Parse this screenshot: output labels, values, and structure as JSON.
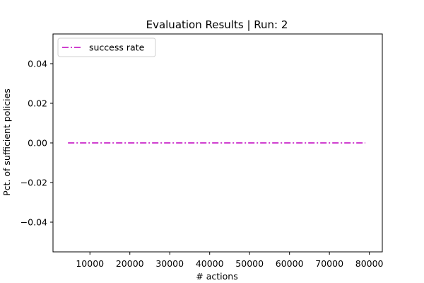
{
  "chart_data": {
    "type": "line",
    "title": "Evaluation Results | Run: 2",
    "xlabel": "# actions",
    "ylabel": "Pct. of sufficient policies",
    "xlim": [
      750,
      83250
    ],
    "ylim": [
      -0.055,
      0.055
    ],
    "xticks": [
      10000,
      20000,
      30000,
      40000,
      50000,
      60000,
      70000,
      80000
    ],
    "xtick_labels": [
      "10000",
      "20000",
      "30000",
      "40000",
      "50000",
      "60000",
      "70000",
      "80000"
    ],
    "yticks": [
      -0.04,
      -0.02,
      0.0,
      0.02,
      0.04
    ],
    "ytick_labels": [
      "−0.04",
      "−0.02",
      "0.00",
      "0.02",
      "0.04"
    ],
    "grid": false,
    "legend_position": "upper-left",
    "series": [
      {
        "name": "success rate",
        "color": "#bf00bf",
        "linestyle": "dash-dot",
        "x": [
          4500,
          79000
        ],
        "y": [
          0.0,
          0.0
        ]
      }
    ]
  }
}
